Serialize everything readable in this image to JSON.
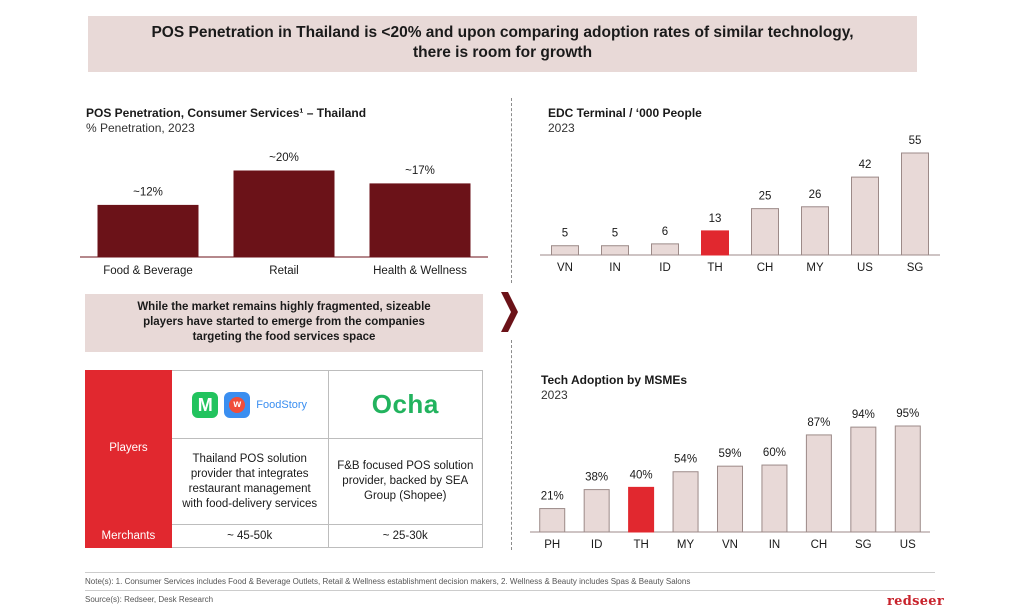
{
  "header": {
    "line1": "POS Penetration in Thailand is <20% and upon comparing adoption rates of similar technology,",
    "line2": "there is room for growth"
  },
  "left_chart": {
    "title": "POS Penetration, Consumer Services¹ – Thailand",
    "subtitle": "% Penetration, 2023"
  },
  "callout": {
    "line1": "While the market remains highly fragmented, sizeable",
    "line2": "players have started to emerge from the companies",
    "line3": "targeting the  food services space"
  },
  "players_table": {
    "players_label": "Players",
    "merchants_label": "Merchants",
    "foodstory": {
      "logo_text": "FoodStory",
      "desc1": "Thailand POS solution",
      "desc2": "provider that integrates",
      "desc3": "restaurant management",
      "desc4": "with food-delivery services",
      "merchants": "~ 45-50k"
    },
    "ocha": {
      "logo_text": "Ocha",
      "desc1": "F&B focused POS solution",
      "desc2": "provider, backed by SEA",
      "desc3": "Group (Shopee)",
      "merchants": "~ 25-30k"
    }
  },
  "right_top": {
    "title": "EDC Terminal / ‘000 People",
    "subtitle": "2023"
  },
  "right_bottom": {
    "title": "Tech Adoption by MSMEs",
    "subtitle": "2023"
  },
  "notes": {
    "note": "Note(s): 1. Consumer Services includes Food & Beverage Outlets, Retail & Wellness establishment decision makers, 2. Wellness & Beauty includes Spas & Beauty Salons",
    "source": "Source(s): Redseer, Desk Research",
    "brand": "redseer"
  },
  "colors": {
    "dark_red": "#6b1218",
    "highlight_red": "#e1282f",
    "bar_pink": "#e8d9d7",
    "bar_stroke": "#9c8a88"
  },
  "chart_data": [
    {
      "type": "bar",
      "categories": [
        "Food & Beverage",
        "Retail",
        "Health & Wellness"
      ],
      "values": [
        12,
        20,
        17
      ],
      "labels": [
        "~12%",
        "~20%",
        "~17%"
      ],
      "ylim": [
        0,
        20
      ]
    },
    {
      "type": "bar",
      "categories": [
        "VN",
        "IN",
        "ID",
        "TH",
        "CH",
        "MY",
        "US",
        "SG"
      ],
      "values": [
        5,
        5,
        6,
        13,
        25,
        26,
        42,
        55
      ],
      "labels": [
        "5",
        "5",
        "6",
        "13",
        "25",
        "26",
        "42",
        "55"
      ],
      "highlight": "TH",
      "ylim": [
        0,
        55
      ]
    },
    {
      "type": "bar",
      "categories": [
        "PH",
        "ID",
        "TH",
        "MY",
        "VN",
        "IN",
        "CH",
        "SG",
        "US"
      ],
      "values": [
        21,
        38,
        40,
        54,
        59,
        60,
        87,
        94,
        95
      ],
      "labels": [
        "21%",
        "38%",
        "40%",
        "54%",
        "59%",
        "60%",
        "87%",
        "94%",
        "95%"
      ],
      "highlight": "TH",
      "ylim": [
        0,
        95
      ]
    }
  ]
}
